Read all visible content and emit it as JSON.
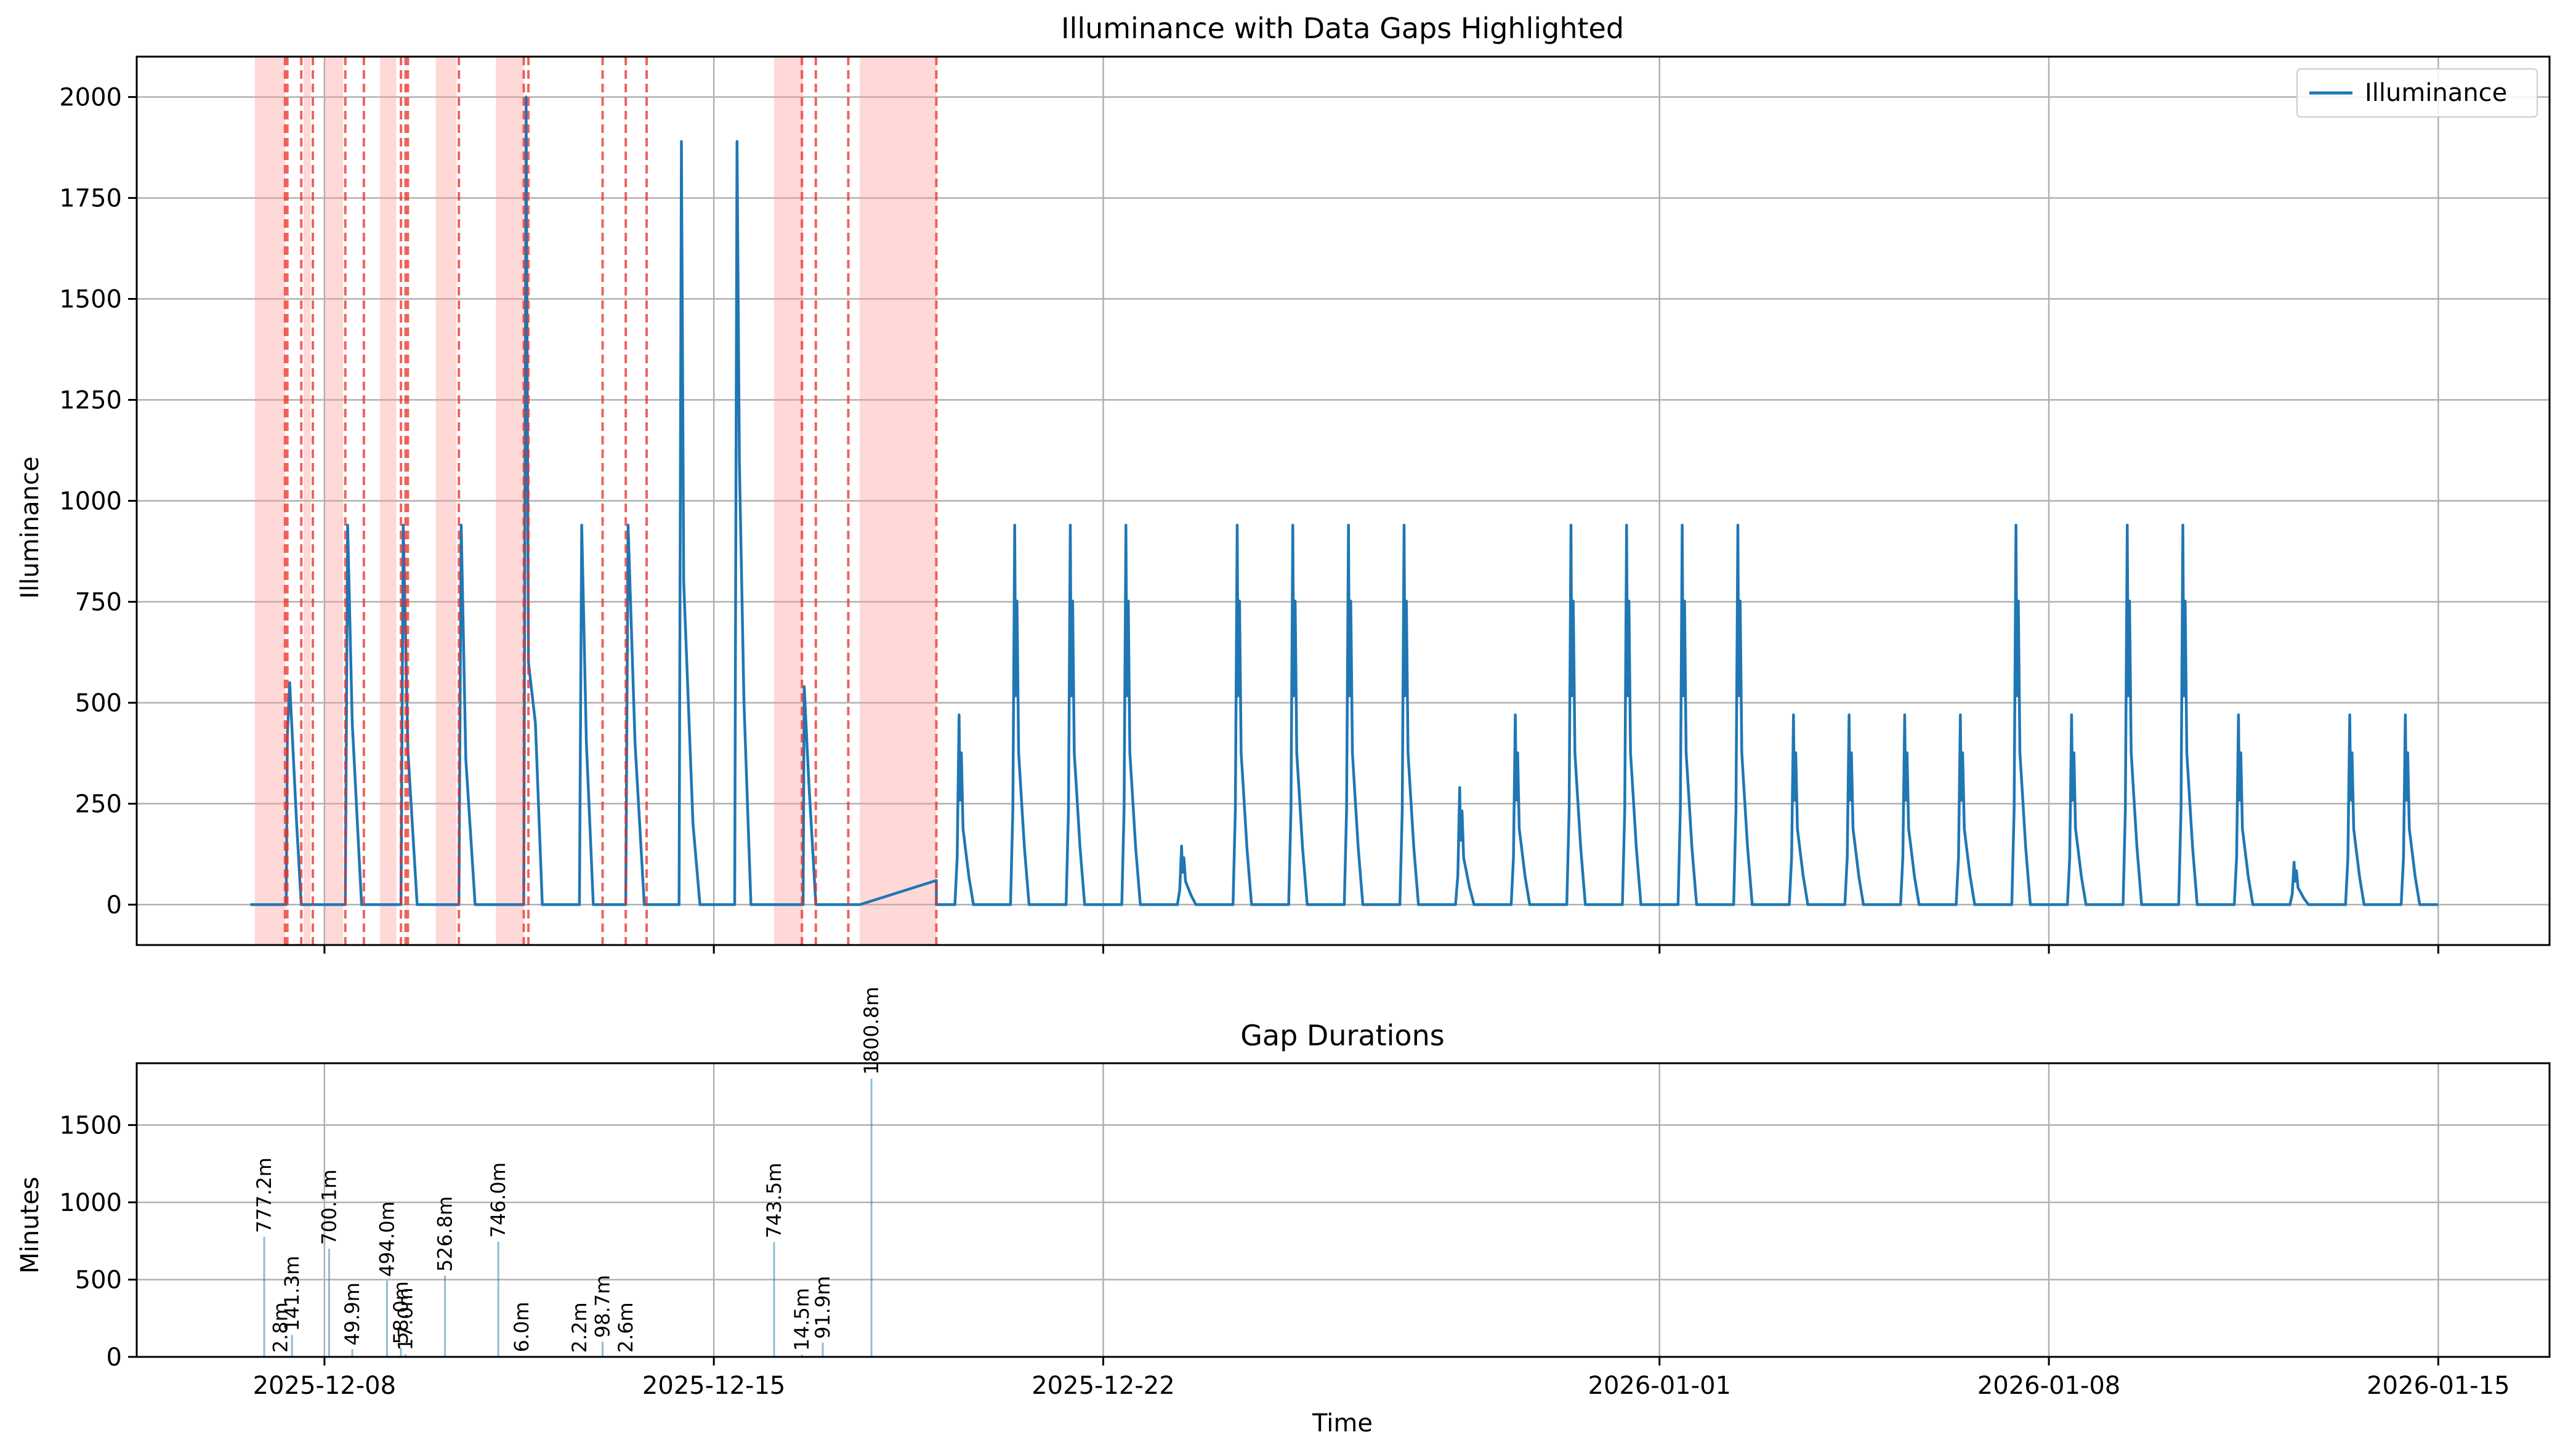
{
  "chart_data": [
    {
      "type": "line",
      "title": "Illuminance with Data Gaps Highlighted",
      "xlabel": "",
      "ylabel": "Illuminance",
      "ylim": [
        -100,
        2100
      ],
      "yticks": [
        0,
        250,
        500,
        750,
        1000,
        1250,
        1500,
        1750,
        2000
      ],
      "xlim": [
        "2025-12-04T15:00",
        "2026-01-17T00:00"
      ],
      "xticks": [
        "2025-12-08",
        "2025-12-15",
        "2025-12-22",
        "2026-01-01",
        "2026-01-08",
        "2026-01-15"
      ],
      "grid": true,
      "legend": {
        "position": "top-right",
        "entries": [
          "Illuminance"
        ]
      },
      "colors": {
        "line": "#1f77b4",
        "gap_fill": "#ff9999",
        "gap_line": "#e8302a"
      },
      "series": [
        {
          "name": "Illuminance",
          "daily_peaks": [
            {
              "date": "2025-12-19",
              "peak": 470
            },
            {
              "date": "2025-12-20",
              "peak": 940
            },
            {
              "date": "2025-12-21",
              "peak": 940
            },
            {
              "date": "2025-12-22",
              "peak": 940
            },
            {
              "date": "2025-12-23",
              "peak": 145
            },
            {
              "date": "2025-12-24",
              "peak": 940
            },
            {
              "date": "2025-12-25",
              "peak": 940
            },
            {
              "date": "2025-12-26",
              "peak": 940
            },
            {
              "date": "2025-12-27",
              "peak": 940
            },
            {
              "date": "2025-12-28",
              "peak": 290
            },
            {
              "date": "2025-12-29",
              "peak": 470
            },
            {
              "date": "2025-12-30",
              "peak": 940
            },
            {
              "date": "2025-12-31",
              "peak": 940
            },
            {
              "date": "2026-01-01",
              "peak": 940
            },
            {
              "date": "2026-01-02",
              "peak": 940
            },
            {
              "date": "2026-01-03",
              "peak": 470
            },
            {
              "date": "2026-01-04",
              "peak": 470
            },
            {
              "date": "2026-01-05",
              "peak": 470
            },
            {
              "date": "2026-01-06",
              "peak": 470
            },
            {
              "date": "2026-01-07",
              "peak": 940
            },
            {
              "date": "2026-01-08",
              "peak": 470
            },
            {
              "date": "2026-01-09",
              "peak": 940
            },
            {
              "date": "2026-01-10",
              "peak": 940
            },
            {
              "date": "2026-01-11",
              "peak": 470
            },
            {
              "date": "2026-01-12",
              "peak": 105
            },
            {
              "date": "2026-01-13",
              "peak": 470
            },
            {
              "date": "2026-01-14",
              "peak": 470
            }
          ],
          "notable_spikes": [
            2000,
            1890,
            1890,
            1100
          ]
        }
      ],
      "gaps": [
        {
          "start": "2025-12-06T18:00",
          "end": "2025-12-07T07:00"
        },
        {
          "start": "2025-12-07T15:00",
          "end": "2025-12-07T18:00"
        },
        {
          "start": "2025-12-08T00:00",
          "end": "2025-12-08T08:00"
        },
        {
          "start": "2025-12-09T00:00",
          "end": "2025-12-09T07:00"
        },
        {
          "start": "2025-12-10T00:00",
          "end": "2025-12-10T09:00"
        },
        {
          "start": "2025-12-11T02:00",
          "end": "2025-12-11T14:00"
        },
        {
          "start": "2025-12-16T02:00",
          "end": "2025-12-16T14:30"
        },
        {
          "start": "2025-12-17T15:00",
          "end": "2025-12-19T00:00"
        }
      ],
      "gap_markers": [
        "2025-12-07T07:00",
        "2025-12-07T08:00",
        "2025-12-07T14:00",
        "2025-12-07T19:00",
        "2025-12-08T09:00",
        "2025-12-08T17:00",
        "2025-12-09T09:00",
        "2025-12-09T11:00",
        "2025-12-09T12:00",
        "2025-12-10T10:00",
        "2025-12-11T14:00",
        "2025-12-11T16:00",
        "2025-12-13T00:00",
        "2025-12-13T10:00",
        "2025-12-13T19:00",
        "2025-12-16T14:00",
        "2025-12-16T20:00",
        "2025-12-17T10:00",
        "2025-12-19T00:00"
      ]
    },
    {
      "type": "bar",
      "title": "Gap Durations",
      "xlabel": "Time",
      "ylabel": "Minutes",
      "ylim": [
        0,
        1900
      ],
      "yticks": [
        0,
        500,
        1000,
        1500
      ],
      "xlim": [
        "2025-12-04T15:00",
        "2026-01-17T00:00"
      ],
      "xticks": [
        "2025-12-08",
        "2025-12-15",
        "2025-12-22",
        "2026-01-01",
        "2026-01-08",
        "2026-01-15"
      ],
      "grid": true,
      "bars": [
        {
          "time": "2025-12-06T22:00",
          "value": 777.2,
          "label": "777.2m"
        },
        {
          "time": "2025-12-07T05:00",
          "value": 2.8,
          "label": "2.8m"
        },
        {
          "time": "2025-12-07T10:00",
          "value": 141.3,
          "label": "141.3m"
        },
        {
          "time": "2025-12-08T02:00",
          "value": 700.1,
          "label": "700.1m"
        },
        {
          "time": "2025-12-08T12:00",
          "value": 49.9,
          "label": "49.9m"
        },
        {
          "time": "2025-12-09T03:00",
          "value": 494.0,
          "label": "494.0m"
        },
        {
          "time": "2025-12-09T09:00",
          "value": 58.0,
          "label": "58.0m"
        },
        {
          "time": "2025-12-09T11:00",
          "value": 17.0,
          "label": "17.0m"
        },
        {
          "time": "2025-12-10T04:00",
          "value": 526.8,
          "label": "526.8m"
        },
        {
          "time": "2025-12-11T03:00",
          "value": 746.0,
          "label": "746.0m"
        },
        {
          "time": "2025-12-11T13:00",
          "value": 6.0,
          "label": "6.0m"
        },
        {
          "time": "2025-12-12T14:00",
          "value": 2.2,
          "label": "2.2m"
        },
        {
          "time": "2025-12-13T00:00",
          "value": 98.7,
          "label": "98.7m"
        },
        {
          "time": "2025-12-13T10:00",
          "value": 2.6,
          "label": "2.6m"
        },
        {
          "time": "2025-12-16T02:00",
          "value": 743.5,
          "label": "743.5m"
        },
        {
          "time": "2025-12-16T14:00",
          "value": 14.5,
          "label": "14.5m"
        },
        {
          "time": "2025-12-16T23:00",
          "value": 91.9,
          "label": "91.9m"
        },
        {
          "time": "2025-12-17T20:00",
          "value": 1800.8,
          "label": "1800.8m"
        }
      ]
    }
  ]
}
